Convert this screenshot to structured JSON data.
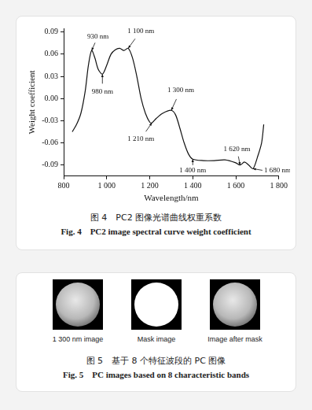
{
  "chart_data": {
    "type": "line",
    "x_label": "Wavelength/nm",
    "y_label": "Weight coefficient",
    "color": "#111111",
    "marker": "none",
    "grid": false,
    "x": [
      840,
      860,
      880,
      900,
      915,
      930,
      945,
      960,
      980,
      1000,
      1020,
      1040,
      1060,
      1080,
      1100,
      1120,
      1140,
      1160,
      1180,
      1200,
      1210,
      1230,
      1260,
      1300,
      1320,
      1340,
      1360,
      1380,
      1400,
      1450,
      1500,
      1550,
      1600,
      1620,
      1640,
      1660,
      1680,
      1700,
      1720,
      1730
    ],
    "values": [
      -0.045,
      -0.035,
      -0.02,
      0.01,
      0.045,
      0.065,
      0.055,
      0.04,
      0.033,
      0.045,
      0.06,
      0.066,
      0.068,
      0.065,
      0.068,
      0.055,
      0.03,
      0.0,
      -0.02,
      -0.032,
      -0.033,
      -0.027,
      -0.02,
      -0.016,
      -0.022,
      -0.04,
      -0.06,
      -0.075,
      -0.082,
      -0.084,
      -0.084,
      -0.083,
      -0.087,
      -0.09,
      -0.086,
      -0.09,
      -0.095,
      -0.08,
      -0.06,
      -0.035
    ],
    "xlim": [
      800,
      1800
    ],
    "xticks": [
      800,
      {
        "value": 1000,
        "label": "1 000"
      },
      {
        "value": 1200,
        "label": "1 200"
      },
      {
        "value": 1400,
        "label": "1 400"
      },
      {
        "value": 1600,
        "label": "1 600"
      },
      {
        "value": 1800,
        "label": "1 800"
      }
    ],
    "ylim": [
      -0.105,
      0.095
    ],
    "yticks": [
      -0.09,
      -0.06,
      -0.03,
      {
        "value": 0,
        "label": "0.00"
      },
      0.03,
      0.06,
      0.09
    ],
    "annotations": [
      {
        "text": "930 nm",
        "x": 930,
        "y": 0.065
      },
      {
        "text": "980 nm",
        "x": 980,
        "y": 0.033
      },
      {
        "text": "1 100 nm",
        "x": 1100,
        "y": 0.068
      },
      {
        "text": "1 300 nm",
        "x": 1300,
        "y": -0.016
      },
      {
        "text": "1 210 nm",
        "x": 1210,
        "y": -0.033
      },
      {
        "text": "1 400 nm",
        "x": 1400,
        "y": -0.082
      },
      {
        "text": "1 620 nm",
        "x": 1620,
        "y": -0.09
      },
      {
        "text": "1 680 nm",
        "x": 1680,
        "y": -0.095
      }
    ]
  },
  "figure4": {
    "caption_zh": "图 4　PC2 图像光谱曲线权重系数",
    "caption_en": "Fig. 4　PC2 image spectral curve weight coefficient"
  },
  "figure5": {
    "images": [
      "1 300 nm image",
      "Mask image",
      "Image after mask"
    ],
    "caption_zh": "图 5　基于 8 个特征波段的 PC 图像",
    "caption_en": "Fig. 5　PC images based on 8 characteristic bands"
  }
}
